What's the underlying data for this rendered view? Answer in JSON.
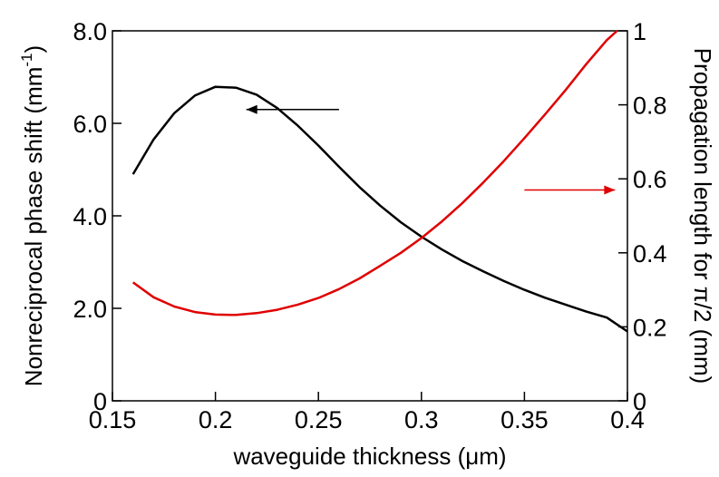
{
  "chart_data": {
    "type": "line",
    "title": "",
    "xlabel": "waveguide thickness (μm)",
    "ylabel_left": "Nonreciprocal phase shift (mm",
    "ylabel_left_sup": "-1",
    "ylabel_left_close": ")",
    "ylabel_right": "Propagation length for  π/2 (mm)",
    "xlim": [
      0.15,
      0.4
    ],
    "ylim_left": [
      0,
      8.0
    ],
    "ylim_right": [
      0,
      1
    ],
    "grid": false,
    "x_ticks": [
      {
        "value": 0.15,
        "label": "0.15"
      },
      {
        "value": 0.2,
        "label": "0.2"
      },
      {
        "value": 0.25,
        "label": "0.25"
      },
      {
        "value": 0.3,
        "label": "0.3"
      },
      {
        "value": 0.35,
        "label": "0.35"
      },
      {
        "value": 0.4,
        "label": "0.4"
      }
    ],
    "y_left_ticks": [
      {
        "value": 0,
        "label": "0"
      },
      {
        "value": 2,
        "label": "2.0"
      },
      {
        "value": 4,
        "label": "4.0"
      },
      {
        "value": 6,
        "label": "6.0"
      },
      {
        "value": 8,
        "label": "8.0"
      }
    ],
    "y_right_ticks": [
      {
        "value": 0,
        "label": "0"
      },
      {
        "value": 0.2,
        "label": "0.2"
      },
      {
        "value": 0.4,
        "label": "0.4"
      },
      {
        "value": 0.6,
        "label": "0.6"
      },
      {
        "value": 0.8,
        "label": "0.8"
      },
      {
        "value": 1,
        "label": "1"
      }
    ],
    "series": [
      {
        "axis": "left",
        "color": "#000000",
        "x": [
          0.16,
          0.17,
          0.18,
          0.19,
          0.2,
          0.21,
          0.22,
          0.23,
          0.24,
          0.25,
          0.26,
          0.27,
          0.28,
          0.29,
          0.3,
          0.31,
          0.32,
          0.33,
          0.34,
          0.35,
          0.36,
          0.37,
          0.38,
          0.39,
          0.4
        ],
        "values": [
          4.9,
          5.65,
          6.22,
          6.6,
          6.79,
          6.77,
          6.62,
          6.33,
          5.95,
          5.52,
          5.06,
          4.62,
          4.22,
          3.86,
          3.55,
          3.27,
          3.02,
          2.8,
          2.59,
          2.4,
          2.23,
          2.08,
          1.93,
          1.8,
          1.5
        ]
      },
      {
        "axis": "right",
        "color": "#e00000",
        "x": [
          0.16,
          0.17,
          0.18,
          0.19,
          0.2,
          0.21,
          0.22,
          0.23,
          0.24,
          0.25,
          0.26,
          0.27,
          0.28,
          0.29,
          0.3,
          0.31,
          0.32,
          0.33,
          0.34,
          0.35,
          0.36,
          0.37,
          0.38,
          0.39,
          0.395
        ],
        "values": [
          0.32,
          0.28,
          0.255,
          0.24,
          0.233,
          0.232,
          0.237,
          0.246,
          0.26,
          0.278,
          0.302,
          0.331,
          0.365,
          0.4,
          0.44,
          0.485,
          0.535,
          0.59,
          0.648,
          0.71,
          0.774,
          0.84,
          0.91,
          0.975,
          1.0
        ]
      }
    ],
    "annotations": [
      {
        "type": "arrow",
        "color": "#000000",
        "direction": "left",
        "from": [
          0.26,
          6.3
        ],
        "to": [
          0.215,
          6.3
        ]
      },
      {
        "type": "arrow",
        "color": "#e00000",
        "direction": "right",
        "from": [
          0.35,
          0.57
        ],
        "to": [
          0.394,
          0.57
        ]
      }
    ]
  }
}
